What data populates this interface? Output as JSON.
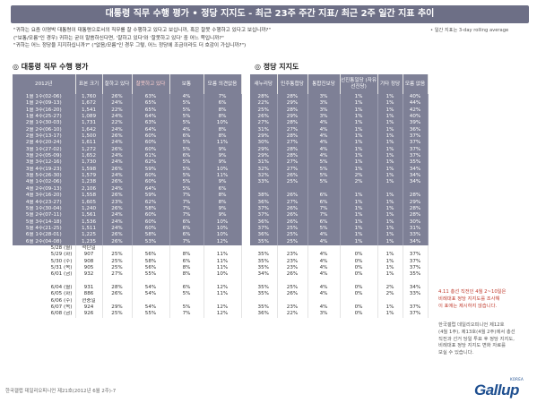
{
  "header": {
    "title": "대통령 직무 수행 평가 • 정당 지지도 - 최근 23주 주간 지표/ 최근 2주 일간 지표 추이"
  },
  "questions": [
    "\"귀하는 요즘 이명박 대통령이 대통령으로서의 직무를 잘 수행하고 있다고 보십니까, 혹은 잘못 수행하고 있다고 보십니까?\"",
    "(\"보통/모름\"인 경우) 귀하는 굳이 말씀하신다면, '잘하고 있다'와 '잘못하고 있다' 중 어느 쪽입니까?\"",
    "\"귀하는 어느 정당을 지지하십니까?\" (\"없음/모름\"인 경우 그렇, 어느 정당에 조금이라도 더 호감이 가십니까?\")"
  ],
  "note": "• 일간 지표는 3-day rolling average",
  "approval": {
    "section_title": "◎ 대통령 직무 수행 평가",
    "headers": [
      "2012년",
      "표본 크기",
      "잘하고 있다",
      "잘못하고 있다",
      "보통",
      "모름 의견없음"
    ],
    "weekly": [
      [
        "1월 1주(02-06)",
        "1,760",
        "26%",
        "63%",
        "4%",
        "7%"
      ],
      [
        "1월 2주(09-13)",
        "1,672",
        "24%",
        "65%",
        "5%",
        "6%"
      ],
      [
        "1월 3주(16-20)",
        "1,541",
        "22%",
        "65%",
        "5%",
        "8%"
      ],
      [
        "1월 4주(25-27)",
        "1,089",
        "24%",
        "64%",
        "5%",
        "8%"
      ],
      [
        "2월 1주(30-03)",
        "1,731",
        "22%",
        "63%",
        "5%",
        "10%"
      ],
      [
        "2월 2주(06-10)",
        "1,642",
        "24%",
        "64%",
        "4%",
        "8%"
      ],
      [
        "2월 3주(13-17)",
        "1,500",
        "26%",
        "60%",
        "6%",
        "8%"
      ],
      [
        "2월 4주(20-24)",
        "1,611",
        "24%",
        "60%",
        "5%",
        "11%"
      ],
      [
        "3월 1주(27-02)",
        "1,272",
        "26%",
        "60%",
        "5%",
        "9%"
      ],
      [
        "3월 2주(05-09)",
        "1,652",
        "24%",
        "61%",
        "6%",
        "9%"
      ],
      [
        "3월 3주(12-16)",
        "1,730",
        "24%",
        "62%",
        "5%",
        "9%"
      ],
      [
        "3월 4주(19-23)",
        "1,598",
        "26%",
        "59%",
        "5%",
        "10%"
      ],
      [
        "3월 5주(26-30)",
        "1,579",
        "24%",
        "60%",
        "5%",
        "11%"
      ],
      [
        "4월 1주(02-06)",
        "1,238",
        "26%",
        "60%",
        "5%",
        "9%"
      ],
      [
        "4월 2주(09-13)",
        "2,106",
        "24%",
        "64%",
        "5%",
        "6%"
      ],
      [
        "4월 3주(16-20)",
        "1,558",
        "26%",
        "59%",
        "7%",
        "8%"
      ],
      [
        "4월 4주(23-27)",
        "1,605",
        "23%",
        "62%",
        "7%",
        "8%"
      ],
      [
        "5월 1주(30-04)",
        "1,240",
        "26%",
        "58%",
        "7%",
        "9%"
      ],
      [
        "5월 2주(07-11)",
        "1,561",
        "24%",
        "60%",
        "7%",
        "9%"
      ],
      [
        "5월 3주(14-18)",
        "1,536",
        "24%",
        "60%",
        "6%",
        "10%"
      ],
      [
        "5월 4주(21-25)",
        "1,511",
        "24%",
        "60%",
        "6%",
        "10%"
      ],
      [
        "6월 1주(28-01)",
        "1,225",
        "26%",
        "58%",
        "6%",
        "10%"
      ],
      [
        "6월 2주(04-08)",
        "1,235",
        "26%",
        "53%",
        "7%",
        "12%"
      ]
    ],
    "daily": [
      [
        "5/28 (월)",
        "석탄일",
        "",
        "",
        "",
        ""
      ],
      [
        "5/29 (화)",
        "907",
        "25%",
        "56%",
        "8%",
        "11%"
      ],
      [
        "5/30 (수)",
        "908",
        "25%",
        "58%",
        "6%",
        "11%"
      ],
      [
        "5/31 (목)",
        "905",
        "25%",
        "56%",
        "8%",
        "11%"
      ],
      [
        "6/01 (금)",
        "932",
        "27%",
        "55%",
        "8%",
        "10%"
      ],
      [
        "",
        "",
        "",
        "",
        "",
        ""
      ],
      [
        "6/04 (월)",
        "931",
        "28%",
        "54%",
        "6%",
        "12%"
      ],
      [
        "6/05 (화)",
        "886",
        "26%",
        "54%",
        "5%",
        "11%"
      ],
      [
        "6/06 (수)",
        "현충일",
        "",
        "",
        "",
        ""
      ],
      [
        "6/07 (목)",
        "924",
        "29%",
        "54%",
        "5%",
        "12%"
      ],
      [
        "6/08 (금)",
        "926",
        "25%",
        "55%",
        "7%",
        "12%"
      ]
    ]
  },
  "party": {
    "section_title": "◎ 정당 지지도",
    "headers": [
      "새누리당",
      "민주통합당",
      "통합진보당",
      "선진통일당 (자유선진당)",
      "기타 정당",
      "모름 없음"
    ],
    "weekly": [
      [
        "28%",
        "28%",
        "3%",
        "1%",
        "1%",
        "40%"
      ],
      [
        "22%",
        "29%",
        "3%",
        "1%",
        "1%",
        "44%"
      ],
      [
        "25%",
        "28%",
        "3%",
        "1%",
        "1%",
        "42%"
      ],
      [
        "26%",
        "29%",
        "3%",
        "1%",
        "1%",
        "40%"
      ],
      [
        "27%",
        "28%",
        "4%",
        "1%",
        "1%",
        "39%"
      ],
      [
        "31%",
        "27%",
        "4%",
        "1%",
        "1%",
        "36%"
      ],
      [
        "29%",
        "28%",
        "4%",
        "1%",
        "1%",
        "37%"
      ],
      [
        "30%",
        "27%",
        "4%",
        "1%",
        "1%",
        "37%"
      ],
      [
        "29%",
        "28%",
        "4%",
        "1%",
        "1%",
        "37%"
      ],
      [
        "29%",
        "28%",
        "4%",
        "1%",
        "1%",
        "37%"
      ],
      [
        "31%",
        "27%",
        "5%",
        "1%",
        "1%",
        "35%"
      ],
      [
        "32%",
        "27%",
        "5%",
        "1%",
        "1%",
        "34%"
      ],
      [
        "32%",
        "26%",
        "5%",
        "2%",
        "1%",
        "34%"
      ],
      [
        "33%",
        "25%",
        "5%",
        "2%",
        "1%",
        "34%"
      ],
      [
        "",
        "",
        "",
        "",
        "",
        ""
      ],
      [
        "38%",
        "26%",
        "6%",
        "1%",
        "1%",
        "28%"
      ],
      [
        "36%",
        "27%",
        "6%",
        "1%",
        "1%",
        "29%"
      ],
      [
        "37%",
        "26%",
        "7%",
        "1%",
        "1%",
        "28%"
      ],
      [
        "37%",
        "26%",
        "7%",
        "1%",
        "1%",
        "28%"
      ],
      [
        "36%",
        "26%",
        "6%",
        "1%",
        "1%",
        "30%"
      ],
      [
        "37%",
        "25%",
        "5%",
        "1%",
        "1%",
        "31%"
      ],
      [
        "36%",
        "25%",
        "4%",
        "1%",
        "1%",
        "33%"
      ],
      [
        "35%",
        "25%",
        "4%",
        "1%",
        "1%",
        "34%"
      ]
    ],
    "daily": [
      [
        "",
        "",
        "",
        "",
        "",
        ""
      ],
      [
        "35%",
        "23%",
        "4%",
        "0%",
        "1%",
        "37%"
      ],
      [
        "35%",
        "23%",
        "4%",
        "0%",
        "1%",
        "37%"
      ],
      [
        "35%",
        "23%",
        "4%",
        "0%",
        "1%",
        "37%"
      ],
      [
        "34%",
        "26%",
        "4%",
        "0%",
        "1%",
        "35%"
      ],
      [
        "",
        "",
        "",
        "",
        "",
        ""
      ],
      [
        "35%",
        "25%",
        "4%",
        "0%",
        "2%",
        "34%"
      ],
      [
        "35%",
        "26%",
        "4%",
        "0%",
        "2%",
        "33%"
      ],
      [
        "",
        "",
        "",
        "",
        "",
        ""
      ],
      [
        "35%",
        "23%",
        "4%",
        "0%",
        "1%",
        "37%"
      ],
      [
        "36%",
        "22%",
        "3%",
        "0%",
        "1%",
        "37%"
      ]
    ]
  },
  "side_note_red": [
    "4.11 총선 직전인 4월 2~10일은",
    "비례대표 정당 지지도를 조사해",
    "이 표에는 제시하지 않습니다."
  ],
  "side_note_gray": [
    "한국갤럽 데일리오피니언 제12호",
    "(4월 1주), 제13호(4월 2주)에서 총선",
    "직전과 선거 당일 투표 후 정당 지지도,",
    "비례대표 정당 지지도 변화 자료를",
    "보실 수 있습니다."
  ],
  "footer": "한국갤럽 데일리오피니언 제21호(2012년 6월 2주)-7",
  "logo": {
    "word": "Gallup",
    "sub": "KOREA"
  },
  "colors": {
    "header_bg": "#6d6f86",
    "table_head": "#7e8096",
    "accent_red": "#c0392b",
    "logo_blue": "#1d4e8f"
  }
}
